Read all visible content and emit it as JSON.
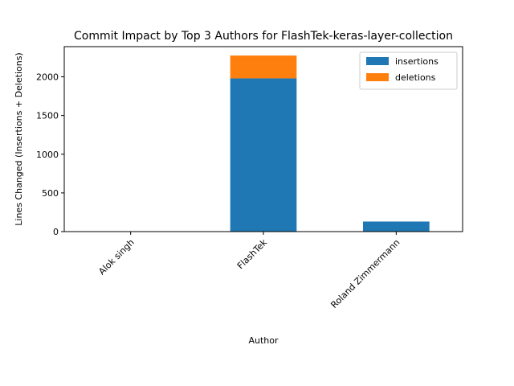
{
  "chart_data": {
    "type": "bar",
    "stacked": true,
    "title": "Commit Impact by Top 3 Authors for FlashTek-keras-layer-collection",
    "xlabel": "Author",
    "ylabel": "Lines Changed (Insertions + Deletions)",
    "categories": [
      "Alok singh",
      "FlashTek",
      "Roland Zimmermann"
    ],
    "series": [
      {
        "name": "insertions",
        "values": [
          2,
          1980,
          130
        ],
        "color": "#1f77b4"
      },
      {
        "name": "deletions",
        "values": [
          0,
          295,
          0
        ],
        "color": "#ff7f0e"
      }
    ],
    "ylim": [
      0,
      2390
    ],
    "yticks": [
      0,
      500,
      1000,
      1500,
      2000
    ],
    "legend": "top-right",
    "grid": false
  }
}
